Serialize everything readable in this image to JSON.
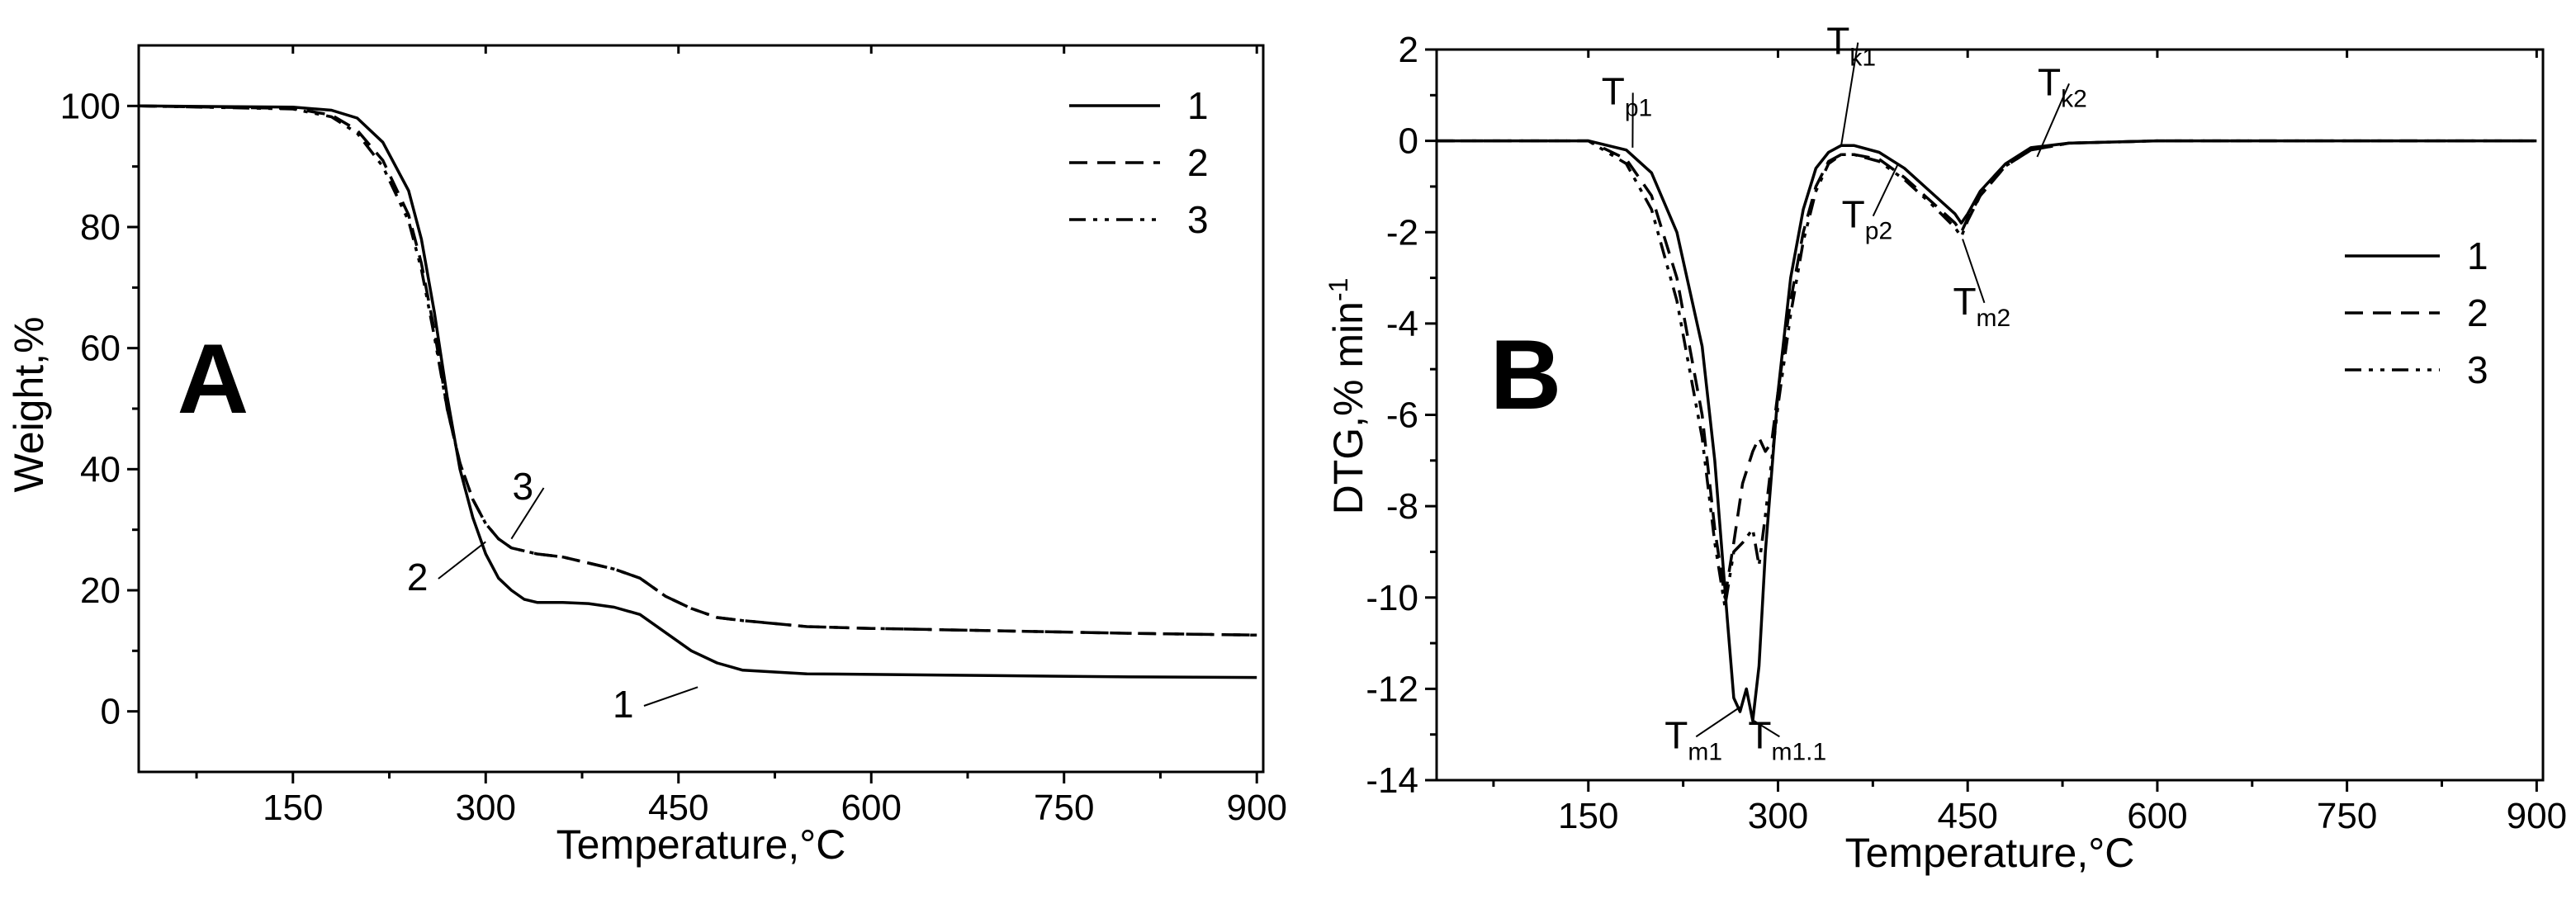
{
  "chart_data": [
    {
      "panel": "A",
      "type": "line",
      "xlabel": "Temperature,°C",
      "ylabel": "Weight,%",
      "xlim": [
        30,
        905
      ],
      "ylim": [
        -10,
        110
      ],
      "xticks": [
        150,
        300,
        450,
        600,
        750,
        900
      ],
      "yticks": [
        0,
        20,
        40,
        60,
        80,
        100
      ],
      "legend_position": "top-right",
      "series": [
        {
          "name": "1",
          "dash": "solid",
          "x": [
            30,
            150,
            180,
            200,
            220,
            240,
            250,
            260,
            270,
            280,
            290,
            300,
            310,
            320,
            330,
            340,
            360,
            380,
            400,
            420,
            440,
            460,
            480,
            500,
            550,
            600,
            700,
            800,
            900
          ],
          "y": [
            100,
            99.8,
            99.3,
            98,
            94,
            86,
            78,
            66,
            52,
            40,
            32,
            26,
            22,
            20,
            18.5,
            18,
            18,
            17.8,
            17.2,
            16,
            13,
            10,
            8,
            6.8,
            6.2,
            6.1,
            5.9,
            5.7,
            5.6
          ]
        },
        {
          "name": "2",
          "dash": "dash",
          "x": [
            30,
            150,
            180,
            200,
            220,
            240,
            250,
            260,
            270,
            280,
            290,
            300,
            310,
            320,
            330,
            340,
            360,
            380,
            400,
            420,
            440,
            460,
            480,
            500,
            550,
            600,
            700,
            800,
            900
          ],
          "y": [
            100,
            99.6,
            98.5,
            96,
            91,
            82,
            74,
            63,
            50,
            41,
            35,
            31,
            28.5,
            27,
            26.5,
            26,
            25.5,
            24.5,
            23.5,
            22,
            19,
            17,
            15.5,
            15,
            14,
            13.7,
            13.3,
            12.9,
            12.6
          ]
        },
        {
          "name": "3",
          "dash": "dashdotdot",
          "x": [
            30,
            150,
            180,
            200,
            220,
            240,
            250,
            260,
            270,
            280,
            290,
            300,
            310,
            320,
            330,
            340,
            360,
            380,
            400,
            420,
            440,
            460,
            480,
            500,
            550,
            600,
            700,
            800,
            900
          ],
          "y": [
            100,
            99.5,
            98.2,
            95.5,
            90,
            81,
            73,
            62,
            50,
            41,
            35,
            31,
            28.5,
            27,
            26.5,
            26,
            25.5,
            24.5,
            23.5,
            22,
            19,
            17,
            15.5,
            15,
            14,
            13.7,
            13.3,
            12.9,
            12.6
          ]
        }
      ],
      "annotations": [
        {
          "text": "3",
          "tx": 340,
          "ty": 35,
          "ax": 320,
          "ay": 28.5
        },
        {
          "text": "2",
          "tx": 258,
          "ty": 20,
          "ax": 300,
          "ay": 28
        },
        {
          "text": "1",
          "tx": 418,
          "ty": -1,
          "ax": 465,
          "ay": 4
        }
      ]
    },
    {
      "panel": "B",
      "type": "line",
      "xlabel": "Temperature,°C",
      "ylabel": "DTG,% min",
      "ylabel_sup": "-1",
      "xlim": [
        30,
        905
      ],
      "ylim": [
        -14,
        2
      ],
      "xticks": [
        150,
        300,
        450,
        600,
        750,
        900
      ],
      "yticks": [
        2,
        0,
        -2,
        -4,
        -6,
        -8,
        -10,
        -12,
        -14
      ],
      "legend_position": "right",
      "series": [
        {
          "name": "1",
          "dash": "solid",
          "x": [
            30,
            150,
            180,
            200,
            220,
            240,
            250,
            260,
            265,
            270,
            275,
            280,
            285,
            290,
            300,
            310,
            320,
            330,
            340,
            350,
            360,
            380,
            400,
            420,
            440,
            445,
            450,
            460,
            480,
            500,
            530,
            600,
            700,
            800,
            900
          ],
          "y": [
            0,
            0,
            -0.2,
            -0.7,
            -2,
            -4.5,
            -7,
            -10.5,
            -12.2,
            -12.5,
            -12,
            -12.7,
            -11.5,
            -9,
            -5.5,
            -3,
            -1.5,
            -0.6,
            -0.25,
            -0.1,
            -0.1,
            -0.25,
            -0.6,
            -1.1,
            -1.6,
            -1.8,
            -1.6,
            -1.1,
            -0.5,
            -0.15,
            -0.05,
            0,
            0,
            0,
            0
          ]
        },
        {
          "name": "2",
          "dash": "dash",
          "x": [
            30,
            150,
            180,
            200,
            220,
            240,
            250,
            258,
            265,
            272,
            280,
            285,
            290,
            295,
            300,
            310,
            320,
            330,
            340,
            350,
            360,
            380,
            400,
            420,
            440,
            445,
            450,
            460,
            480,
            500,
            530,
            600,
            700,
            800,
            900
          ],
          "y": [
            0,
            0,
            -0.4,
            -1.2,
            -3,
            -6,
            -8.5,
            -10,
            -8.8,
            -7.5,
            -6.8,
            -6.5,
            -6.8,
            -6.6,
            -5.5,
            -3.5,
            -2,
            -1,
            -0.45,
            -0.3,
            -0.3,
            -0.4,
            -0.8,
            -1.3,
            -1.8,
            -2,
            -1.7,
            -1.2,
            -0.55,
            -0.2,
            -0.05,
            0,
            0,
            0,
            0
          ]
        },
        {
          "name": "3",
          "dash": "dashdotdot",
          "x": [
            30,
            150,
            180,
            200,
            220,
            240,
            250,
            258,
            265,
            272,
            280,
            285,
            290,
            295,
            300,
            310,
            320,
            330,
            340,
            350,
            360,
            380,
            400,
            420,
            440,
            445,
            450,
            460,
            480,
            500,
            530,
            600,
            700,
            800,
            900
          ],
          "y": [
            0,
            0,
            -0.5,
            -1.5,
            -3.5,
            -6.5,
            -8.8,
            -10.2,
            -9,
            -8.8,
            -8.5,
            -9.3,
            -8.2,
            -7,
            -5.8,
            -3.8,
            -2.2,
            -1.1,
            -0.5,
            -0.3,
            -0.3,
            -0.45,
            -0.85,
            -1.35,
            -1.9,
            -2.1,
            -1.75,
            -1.2,
            -0.55,
            -0.2,
            -0.05,
            0,
            0,
            0,
            0
          ]
        }
      ],
      "annotations": [
        {
          "text": "T",
          "sub": "p1",
          "tx": 180,
          "ty": 0.8,
          "ax": 185,
          "ay": -0.15
        },
        {
          "text": "T",
          "sub": "k1",
          "tx": 358,
          "ty": 1.9,
          "ax": 350,
          "ay": -0.1
        },
        {
          "text": "T",
          "sub": "k2",
          "tx": 525,
          "ty": 1.0,
          "ax": 505,
          "ay": -0.35
        },
        {
          "text": "T",
          "sub": "p2",
          "tx": 370,
          "ty": -1.9,
          "ax": 395,
          "ay": -0.5
        },
        {
          "text": "T",
          "sub": "m2",
          "tx": 458,
          "ty": -3.8,
          "ax": 446,
          "ay": -2.15
        },
        {
          "text": "T",
          "sub": "m1",
          "tx": 230,
          "ty": -13.3,
          "ax": 270,
          "ay": -12.4
        },
        {
          "text": "T",
          "sub": "m1.1",
          "tx": 296,
          "ty": -13.3,
          "ax": 281,
          "ay": -12.7
        }
      ]
    }
  ]
}
